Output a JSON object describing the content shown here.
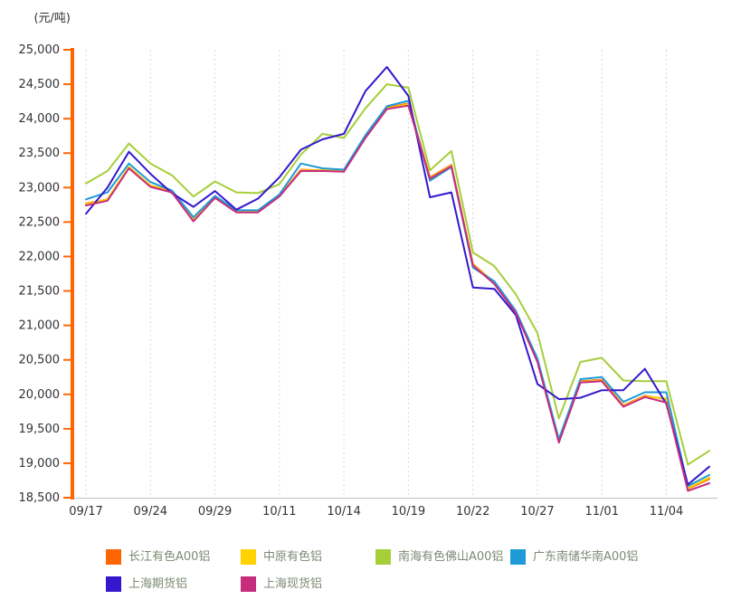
{
  "unit_label": "(元/吨)",
  "chart_data": {
    "type": "line",
    "title": "",
    "ylabel": "(元/吨)",
    "xlabel": "",
    "y_min": 18500,
    "y_max": 25000,
    "y_step": 500,
    "ylim": [
      18500,
      25000
    ],
    "grid": "vertical-dashed",
    "legend_position": "bottom",
    "points_count": 30,
    "x_tick_every": 3,
    "x_tick_labels": [
      "09/17",
      "09/24",
      "09/29",
      "10/11",
      "10/14",
      "10/19",
      "10/22",
      "10/27",
      "11/01",
      "11/04"
    ],
    "y_tick_labels": [
      "25,000",
      "24,500",
      "24,000",
      "23,500",
      "23,000",
      "22,500",
      "22,000",
      "21,500",
      "21,000",
      "20,500",
      "20,000",
      "19,500",
      "19,000",
      "18,500"
    ],
    "axis_colors": {
      "y_axis": "#FF6600",
      "x_axis": "#C0C0C0",
      "grid": "#D9D9D9",
      "tick_text": "#333333",
      "legend_text": "#7D8A72"
    },
    "series": [
      {
        "name": "长江有色A00铝",
        "color": "#FF6600",
        "values": [
          22770,
          22830,
          23300,
          23030,
          22950,
          22530,
          22860,
          22650,
          22650,
          22880,
          23260,
          23250,
          23250,
          23750,
          24160,
          24220,
          23150,
          23330,
          21890,
          21620,
          21200,
          20500,
          19320,
          20190,
          20210,
          19840,
          19980,
          19930,
          18630,
          18770
        ]
      },
      {
        "name": "中原有色铝",
        "color": "#FFD200",
        "values": [
          22760,
          22830,
          23300,
          23030,
          22940,
          22530,
          22860,
          22650,
          22650,
          22880,
          23250,
          23250,
          23240,
          23740,
          24150,
          24210,
          23140,
          23320,
          21880,
          21620,
          21190,
          20490,
          19330,
          20180,
          20200,
          19830,
          19970,
          19940,
          18640,
          18790
        ]
      },
      {
        "name": "南海有色佛山A00铝",
        "color": "#A6CE39",
        "values": [
          23060,
          23240,
          23640,
          23350,
          23180,
          22870,
          23090,
          22930,
          22920,
          23050,
          23480,
          23780,
          23720,
          24150,
          24500,
          24450,
          23250,
          23530,
          22060,
          21860,
          21450,
          20890,
          19650,
          20470,
          20530,
          20200,
          20190,
          20190,
          18980,
          19180
        ]
      },
      {
        "name": "广东南储华南A00铝",
        "color": "#1E9AD6",
        "values": [
          22830,
          22930,
          23350,
          23080,
          22960,
          22570,
          22880,
          22670,
          22670,
          22900,
          23350,
          23280,
          23260,
          23760,
          24180,
          24260,
          23100,
          23300,
          21840,
          21640,
          21210,
          20520,
          19350,
          20220,
          20250,
          19890,
          20030,
          20030,
          18670,
          18830
        ]
      },
      {
        "name": "上海期货铝",
        "color": "#3318CD",
        "values": [
          22620,
          23000,
          23520,
          23200,
          22920,
          22720,
          22950,
          22680,
          22840,
          23150,
          23550,
          23700,
          23780,
          24400,
          24750,
          24330,
          22860,
          22930,
          21550,
          21530,
          21150,
          20150,
          19930,
          19950,
          20060,
          20060,
          20370,
          19860,
          18690,
          18950
        ]
      },
      {
        "name": "上海现货铝",
        "color": "#C62D7D",
        "values": [
          22740,
          22810,
          23280,
          23010,
          22930,
          22510,
          22850,
          22640,
          22640,
          22870,
          23240,
          23240,
          23230,
          23720,
          24140,
          24190,
          23130,
          23310,
          21870,
          21600,
          21180,
          20470,
          19300,
          20170,
          20190,
          19820,
          19960,
          19880,
          18600,
          18710
        ]
      }
    ]
  }
}
